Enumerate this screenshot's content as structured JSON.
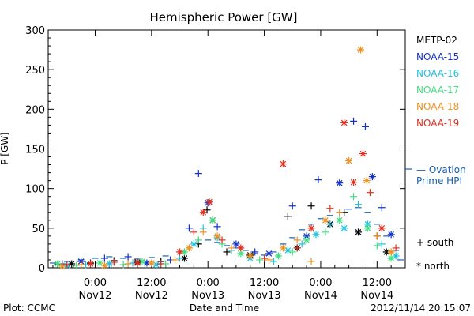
{
  "chart_data": {
    "type": "scatter",
    "title": "Hemispheric Power [GW]",
    "xlabel": "Date and Time",
    "ylabel": "P [GW]",
    "ylim": [
      0,
      300
    ],
    "yticks": [
      0,
      50,
      100,
      150,
      200,
      250,
      300
    ],
    "xlim_hours": [
      -10,
      66
    ],
    "xticks": [
      {
        "hour": 0,
        "line1": "0:00",
        "line2": "Nov12"
      },
      {
        "hour": 12,
        "line1": "12:00",
        "line2": "Nov12"
      },
      {
        "hour": 24,
        "line1": "0:00",
        "line2": "Nov13"
      },
      {
        "hour": 36,
        "line1": "12:00",
        "line2": "Nov13"
      },
      {
        "hour": 48,
        "line1": "0:00",
        "line2": "Nov14"
      },
      {
        "hour": 60,
        "line1": "12:00",
        "line2": "Nov14"
      }
    ],
    "legend_placement": "right",
    "series": [
      {
        "name": "METP-02",
        "color": "#000000",
        "points": [
          [
            -8,
            4,
            "s"
          ],
          [
            -5,
            5,
            "n"
          ],
          [
            -1,
            6,
            "s"
          ],
          [
            4,
            9,
            "s"
          ],
          [
            9,
            7,
            "n"
          ],
          [
            14,
            8,
            "s"
          ],
          [
            19,
            12,
            "n"
          ],
          [
            22,
            30,
            "s"
          ],
          [
            23.8,
            73,
            "s"
          ],
          [
            25,
            60,
            "n"
          ],
          [
            28,
            20,
            "s"
          ],
          [
            33,
            16,
            "n"
          ],
          [
            36,
            12,
            "s"
          ],
          [
            41,
            65,
            "s"
          ],
          [
            43,
            25,
            "n"
          ],
          [
            46,
            78,
            "s"
          ],
          [
            50,
            55,
            "n"
          ],
          [
            53,
            70,
            "s"
          ],
          [
            56,
            45,
            "n"
          ],
          [
            60,
            40,
            "s"
          ],
          [
            62,
            20,
            "n"
          ]
        ]
      },
      {
        "name": "NOAA-15",
        "color": "#1030c8",
        "points": [
          [
            -7,
            5,
            "s"
          ],
          [
            -3,
            8,
            "n"
          ],
          [
            2,
            12,
            "s"
          ],
          [
            7,
            14,
            "s"
          ],
          [
            11,
            6,
            "n"
          ],
          [
            16,
            10,
            "s"
          ],
          [
            20,
            50,
            "s"
          ],
          [
            22,
            119,
            "s"
          ],
          [
            24,
            82,
            "n"
          ],
          [
            26,
            52,
            "s"
          ],
          [
            30,
            30,
            "n"
          ],
          [
            34,
            20,
            "s"
          ],
          [
            37,
            18,
            "n"
          ],
          [
            42,
            78,
            "s"
          ],
          [
            45,
            40,
            "n"
          ],
          [
            47.5,
            111,
            "s"
          ],
          [
            52,
            107,
            "n"
          ],
          [
            55,
            185,
            "s"
          ],
          [
            57.5,
            178,
            "s"
          ],
          [
            59,
            115,
            "n"
          ],
          [
            61,
            76,
            "s"
          ],
          [
            63,
            42,
            "n"
          ]
        ]
      },
      {
        "name": "NOAA-16",
        "color": "#20c0e0",
        "points": [
          [
            -6,
            3,
            "n"
          ],
          [
            -2,
            4,
            "s"
          ],
          [
            3,
            5,
            "n"
          ],
          [
            8,
            6,
            "s"
          ],
          [
            13,
            4,
            "n"
          ],
          [
            18,
            12,
            "s"
          ],
          [
            21,
            30,
            "n"
          ],
          [
            23,
            50,
            "s"
          ],
          [
            26,
            38,
            "n"
          ],
          [
            29,
            22,
            "s"
          ],
          [
            33,
            12,
            "n"
          ],
          [
            38,
            8,
            "s"
          ],
          [
            41,
            22,
            "n"
          ],
          [
            44,
            30,
            "s"
          ],
          [
            47,
            42,
            "n"
          ],
          [
            50,
            55,
            "s"
          ],
          [
            53,
            50,
            "n"
          ],
          [
            56,
            80,
            "s"
          ],
          [
            58,
            55,
            "n"
          ],
          [
            61,
            30,
            "s"
          ],
          [
            64,
            15,
            "n"
          ]
        ]
      },
      {
        "name": "NOAA-17",
        "color": "#40e080",
        "points": [
          [
            -8,
            5,
            "n"
          ],
          [
            -4,
            3,
            "s"
          ],
          [
            1,
            6,
            "n"
          ],
          [
            6,
            4,
            "s"
          ],
          [
            10,
            8,
            "n"
          ],
          [
            15,
            5,
            "s"
          ],
          [
            19,
            20,
            "n"
          ],
          [
            22,
            35,
            "s"
          ],
          [
            25,
            60,
            "n"
          ],
          [
            27,
            30,
            "s"
          ],
          [
            31,
            18,
            "n"
          ],
          [
            35,
            10,
            "s"
          ],
          [
            39,
            15,
            "n"
          ],
          [
            42,
            20,
            "s"
          ],
          [
            45,
            35,
            "n"
          ],
          [
            49,
            45,
            "s"
          ],
          [
            52,
            60,
            "n"
          ],
          [
            55,
            90,
            "s"
          ],
          [
            58,
            50,
            "n"
          ],
          [
            60,
            28,
            "s"
          ],
          [
            63,
            12,
            "n"
          ]
        ]
      },
      {
        "name": "NOAA-18",
        "color": "#f09020",
        "points": [
          [
            -7,
            2,
            "n"
          ],
          [
            -3,
            4,
            "s"
          ],
          [
            2,
            3,
            "n"
          ],
          [
            7,
            5,
            "s"
          ],
          [
            12,
            6,
            "n"
          ],
          [
            17,
            10,
            "s"
          ],
          [
            20,
            25,
            "n"
          ],
          [
            23,
            45,
            "s"
          ],
          [
            26,
            40,
            "n"
          ],
          [
            29,
            25,
            "s"
          ],
          [
            33,
            15,
            "n"
          ],
          [
            37,
            10,
            "s"
          ],
          [
            40,
            25,
            "n"
          ],
          [
            43,
            35,
            "s"
          ],
          [
            46,
            8,
            "s"
          ],
          [
            49,
            60,
            "n"
          ],
          [
            52,
            70,
            "s"
          ],
          [
            54,
            135,
            "n"
          ],
          [
            56.5,
            275,
            "n"
          ],
          [
            57.8,
            110,
            "n"
          ],
          [
            60,
            40,
            "s"
          ],
          [
            63,
            20,
            "n"
          ]
        ]
      },
      {
        "name": "NOAA-19",
        "color": "#e03020",
        "points": [
          [
            -6,
            4,
            "s"
          ],
          [
            -1,
            5,
            "n"
          ],
          [
            4,
            7,
            "s"
          ],
          [
            9,
            6,
            "n"
          ],
          [
            14,
            5,
            "s"
          ],
          [
            18,
            20,
            "n"
          ],
          [
            21,
            45,
            "s"
          ],
          [
            23,
            70,
            "n"
          ],
          [
            24.3,
            83,
            "n"
          ],
          [
            27,
            35,
            "s"
          ],
          [
            31,
            25,
            "n"
          ],
          [
            36,
            12,
            "s"
          ],
          [
            40,
            131,
            "n"
          ],
          [
            43,
            25,
            "s"
          ],
          [
            46,
            50,
            "n"
          ],
          [
            50,
            75,
            "s"
          ],
          [
            53,
            183,
            "n"
          ],
          [
            55,
            108,
            "n"
          ],
          [
            57,
            144,
            "n"
          ],
          [
            58.5,
            95,
            "s"
          ],
          [
            61,
            50,
            "n"
          ],
          [
            64,
            25,
            "s"
          ]
        ]
      }
    ],
    "ovation": {
      "color": "#1a60b0",
      "points": [
        [
          -9,
          6
        ],
        [
          -6,
          8
        ],
        [
          -3,
          10
        ],
        [
          0,
          12
        ],
        [
          3,
          14
        ],
        [
          6,
          12
        ],
        [
          9,
          11
        ],
        [
          12,
          13
        ],
        [
          15,
          15
        ],
        [
          18,
          20
        ],
        [
          20,
          25
        ],
        [
          22,
          30
        ],
        [
          24,
          35
        ],
        [
          26,
          32
        ],
        [
          28,
          28
        ],
        [
          30,
          25
        ],
        [
          32,
          22
        ],
        [
          34,
          18
        ],
        [
          36,
          16
        ],
        [
          38,
          20
        ],
        [
          40,
          30
        ],
        [
          42,
          38
        ],
        [
          44,
          48
        ],
        [
          46,
          55
        ],
        [
          48,
          62
        ],
        [
          50,
          66
        ],
        [
          52,
          70
        ],
        [
          54,
          74
        ],
        [
          56,
          76
        ],
        [
          58,
          70
        ],
        [
          60,
          55
        ],
        [
          62,
          40
        ],
        [
          64,
          22
        ],
        [
          65,
          10
        ]
      ]
    },
    "legend": {
      "entries": [
        "METP-02",
        "NOAA-15",
        "NOAA-16",
        "NOAA-17",
        "NOAA-18",
        "NOAA-19"
      ],
      "ovation_label_line1": "— Ovation",
      "ovation_label_line2": "Prime HPI",
      "south_label": "+ south",
      "north_label": "* north"
    },
    "footer": {
      "left": "Plot: CCMC",
      "right": "2012/11/14 20:15:07"
    }
  }
}
